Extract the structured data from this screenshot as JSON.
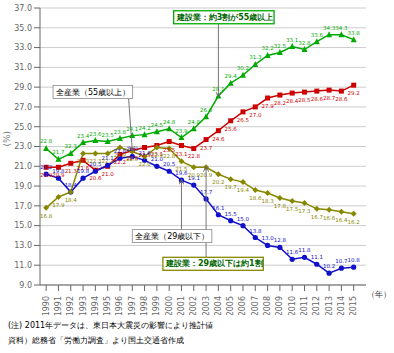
{
  "chart_data": {
    "type": "line",
    "ylabel": "(%)",
    "xlabel": "（年）",
    "annotations": [
      "建設業：約3割が55歳以上",
      "建設業：29歳以下は約1割",
      "全産業（55歳以上）",
      "全産業（29歳以下）"
    ],
    "notes": [
      "(注) 2011年データは、東日本大震災の影響により推計値",
      "資料）総務省「労働力調査」より国土交通省作成"
    ],
    "x": [
      1990,
      1991,
      1992,
      1993,
      1994,
      1995,
      1996,
      1997,
      1998,
      1999,
      2000,
      2001,
      2002,
      2003,
      2004,
      2005,
      2006,
      2007,
      2008,
      2009,
      2010,
      2011,
      2012,
      2013,
      2014,
      2015
    ],
    "xlim": [
      1989.5,
      2016.0
    ],
    "xticks": [
      1990,
      1991,
      1992,
      1993,
      1994,
      1995,
      1996,
      1997,
      1998,
      1999,
      2000,
      2001,
      2002,
      2003,
      2004,
      2005,
      2006,
      2007,
      2008,
      2009,
      2010,
      2011,
      2012,
      2013,
      2014,
      2015
    ],
    "ylim": [
      9.0,
      37.0
    ],
    "yticks": [
      {
        "value": 9.0,
        "label": "9.0"
      },
      {
        "value": 11.0,
        "label": "11.0"
      },
      {
        "value": 13.0,
        "label": "13.0"
      },
      {
        "value": 15.0,
        "label": "15.0"
      },
      {
        "value": 17.0,
        "label": "17.0"
      },
      {
        "value": 19.0,
        "label": "19.0"
      },
      {
        "value": 21.0,
        "label": "21.0"
      },
      {
        "value": 23.0,
        "label": "23.0"
      },
      {
        "value": 25.0,
        "label": "25.0"
      },
      {
        "value": 27.0,
        "label": "27.0"
      },
      {
        "value": 29.0,
        "label": "29.0"
      },
      {
        "value": 31.0,
        "label": "31.0"
      },
      {
        "value": 33.0,
        "label": "33.0"
      },
      {
        "value": 35.0,
        "label": "35.0"
      },
      {
        "value": 37.0,
        "label": "37.0"
      }
    ],
    "grid": true,
    "data_labels": true,
    "series": [
      {
        "color": "#00aa00",
        "marker": "triangle",
        "values": [
          22.8,
          21.7,
          22.3,
          23.4,
          23.6,
          23.5,
          23.8,
          24.1,
          24.2,
          24.5,
          24.8,
          23.9,
          24.8,
          26.0,
          28.1,
          29.4,
          30.2,
          31.3,
          32.2,
          32.5,
          33.1,
          32.8,
          33.6,
          34.3,
          34.3,
          33.8
        ],
        "value_labels": [
          "22.8",
          "21.7",
          "22.3",
          "23.4",
          "23.6",
          "23.5",
          "23.8",
          "24.1",
          "24.2",
          "24.5",
          "24.8",
          "23.9",
          "24.8",
          "26.0",
          "28.1",
          "29.4",
          "30.2",
          "31.3",
          "32.2",
          "32.5",
          "33.1",
          "32.8",
          "33.6",
          "34.3",
          "34.3",
          "33.8"
        ]
      },
      {
        "color": "#cc0000",
        "marker": "square",
        "values": [
          20.9,
          20.9,
          21.3,
          21.6,
          20.6,
          21.0,
          22.2,
          22.6,
          22.9,
          23.1,
          23.5,
          23.1,
          22.8,
          23.7,
          24.6,
          25.6,
          26.5,
          27.0,
          27.9,
          28.2,
          28.4,
          28.5,
          28.6,
          28.7,
          28.6,
          29.2
        ],
        "value_labels": [
          "20.9",
          "20.9",
          "21.3",
          "21.6",
          "20.6",
          "21.0",
          "22.2",
          "22.6",
          "22.9",
          "23.1",
          "23.5",
          "23.1",
          "22.8",
          "23.7",
          "24.6",
          "25.6",
          "26.5",
          "27.0",
          "27.9",
          "28.2",
          "28.4",
          "28.5",
          "28.6",
          "28.7",
          "28.6",
          "29.2"
        ]
      },
      {
        "color": "#1111cc",
        "marker": "circle",
        "values": [
          20.2,
          19.8,
          18.4,
          19.8,
          20.5,
          21.1,
          21.8,
          22.0,
          21.6,
          21.0,
          20.5,
          19.6,
          19.1,
          17.7,
          16.1,
          15.5,
          15.0,
          13.8,
          13.0,
          12.8,
          11.6,
          11.8,
          11.1,
          10.2,
          10.7,
          10.8
        ],
        "value_labels": [
          "20.2",
          "19.8",
          "18.4",
          "19.8",
          "20.5",
          "21.1",
          "21.8",
          "22.0",
          "21.6",
          "21.0",
          "20.5",
          "19.6",
          "19.1",
          "17.7",
          "16.1",
          "15.5",
          "15.0",
          "13.8",
          "13.0",
          "12.8",
          "11.6",
          "11.8",
          "11.1",
          "10.2",
          "10.7",
          "10.8"
        ]
      },
      {
        "color": "#888800",
        "marker": "diamond",
        "values": [
          16.8,
          17.9,
          18.4,
          22.3,
          22.3,
          22.3,
          22.9,
          22.5,
          22.0,
          22.9,
          22.8,
          21.5,
          20.9,
          20.9,
          20.2,
          19.7,
          19.4,
          18.6,
          18.3,
          17.8,
          17.5,
          17.3,
          16.7,
          16.6,
          16.4,
          16.2
        ],
        "value_labels": [
          "16.8",
          "17.9",
          "18.4",
          "22.3",
          "22.3",
          "22.3",
          "22.9",
          "22.5",
          "22.0",
          "22.9",
          "22.8",
          "21.5",
          "20.9",
          "20.9",
          "20.2",
          "19.7",
          "19.4",
          "18.6",
          "18.3",
          "17.8",
          "17.5",
          "17.3",
          "16.7",
          "16.6",
          "16.4",
          "16.2"
        ]
      }
    ]
  }
}
